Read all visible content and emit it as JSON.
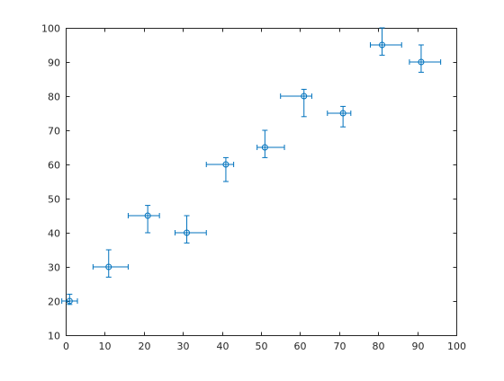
{
  "chart_data": {
    "type": "scatter",
    "title": "",
    "xlabel": "",
    "ylabel": "",
    "xlim": [
      0,
      100
    ],
    "ylim": [
      10,
      100
    ],
    "x_ticks": [
      0,
      10,
      20,
      30,
      40,
      50,
      60,
      70,
      80,
      90,
      100
    ],
    "y_ticks": [
      10,
      20,
      30,
      40,
      50,
      60,
      70,
      80,
      90,
      100
    ],
    "grid": false,
    "legend": "none",
    "marker": "circle",
    "color": "#0072bd",
    "axis_color": "#262626",
    "series": [
      {
        "points": [
          {
            "x": 1,
            "y": 20,
            "x_err_neg": 2,
            "x_err_pos": 2,
            "y_err_neg": 1,
            "y_err_pos": 2
          },
          {
            "x": 11,
            "y": 30,
            "x_err_neg": 4,
            "x_err_pos": 5,
            "y_err_neg": 3,
            "y_err_pos": 5
          },
          {
            "x": 21,
            "y": 45,
            "x_err_neg": 5,
            "x_err_pos": 3,
            "y_err_neg": 5,
            "y_err_pos": 3
          },
          {
            "x": 31,
            "y": 40,
            "x_err_neg": 3,
            "x_err_pos": 5,
            "y_err_neg": 3,
            "y_err_pos": 5
          },
          {
            "x": 41,
            "y": 60,
            "x_err_neg": 5,
            "x_err_pos": 2,
            "y_err_neg": 5,
            "y_err_pos": 2
          },
          {
            "x": 51,
            "y": 65,
            "x_err_neg": 2,
            "x_err_pos": 5,
            "y_err_neg": 3,
            "y_err_pos": 5
          },
          {
            "x": 61,
            "y": 80,
            "x_err_neg": 6,
            "x_err_pos": 2,
            "y_err_neg": 6,
            "y_err_pos": 2
          },
          {
            "x": 71,
            "y": 75,
            "x_err_neg": 4,
            "x_err_pos": 2,
            "y_err_neg": 4,
            "y_err_pos": 2
          },
          {
            "x": 81,
            "y": 95,
            "x_err_neg": 3,
            "x_err_pos": 5,
            "y_err_neg": 3,
            "y_err_pos": 5
          },
          {
            "x": 91,
            "y": 90,
            "x_err_neg": 3,
            "x_err_pos": 5,
            "y_err_neg": 3,
            "y_err_pos": 5
          }
        ]
      }
    ]
  }
}
